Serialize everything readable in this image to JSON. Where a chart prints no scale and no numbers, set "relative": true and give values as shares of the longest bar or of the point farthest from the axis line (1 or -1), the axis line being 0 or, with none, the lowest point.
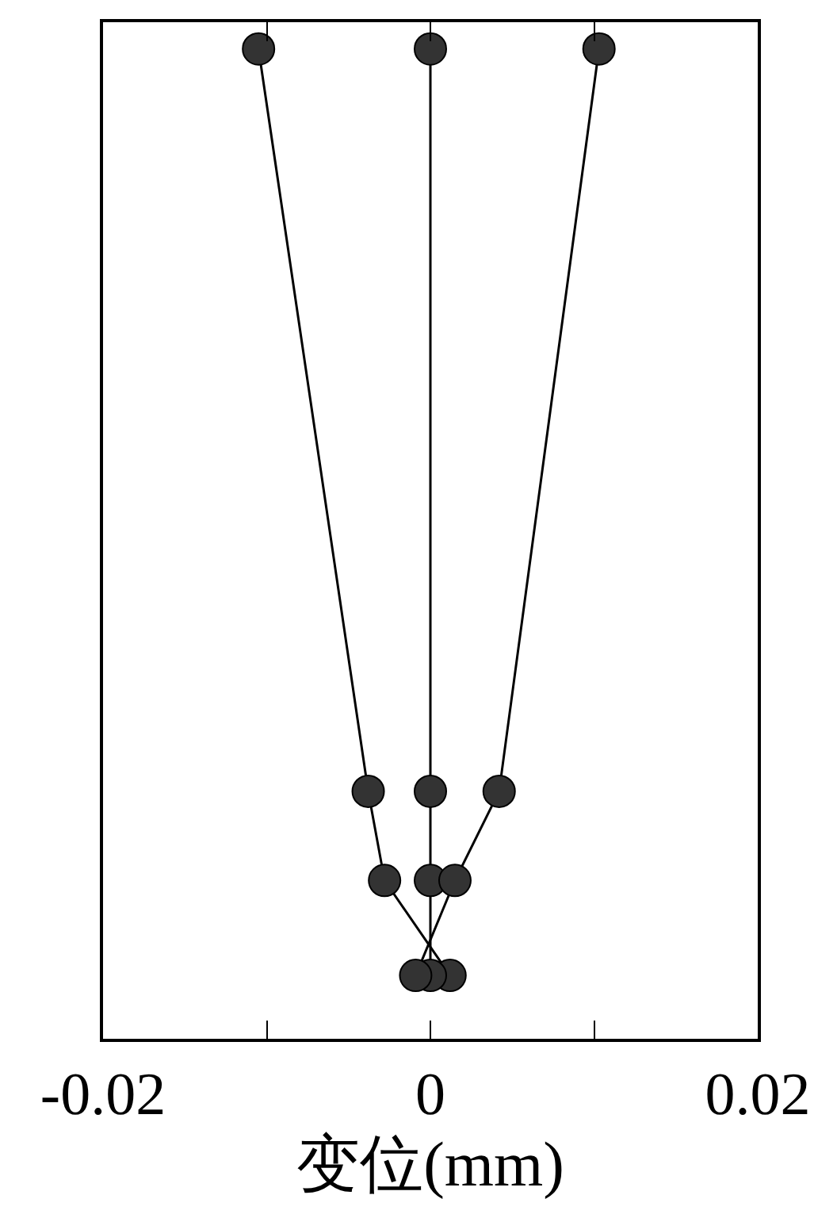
{
  "chart_data": {
    "type": "line",
    "relative": true,
    "xlabel": "变位(mm)",
    "xlim": [
      -0.02,
      0.02
    ],
    "xticks": [
      -0.02,
      {
        "value": -0.01,
        "label": null
      },
      0,
      {
        "value": 0.01,
        "label": null
      },
      0.02
    ],
    "marker": "circle",
    "line_style": "solid",
    "series": [
      {
        "color": "#333333",
        "x": [
          0.0012,
          -0.0028,
          -0.0038,
          -0.0105
        ],
        "values": [
          0.064,
          0.16,
          0.25,
          1
        ]
      },
      {
        "color": "#333333",
        "x": [
          0,
          0,
          0,
          0
        ],
        "values": [
          0.064,
          0.16,
          0.25,
          1
        ]
      },
      {
        "color": "#333333",
        "x": [
          -0.0009,
          0.0015,
          0.0042,
          0.0103
        ],
        "values": [
          0.064,
          0.16,
          0.25,
          1
        ]
      }
    ]
  }
}
